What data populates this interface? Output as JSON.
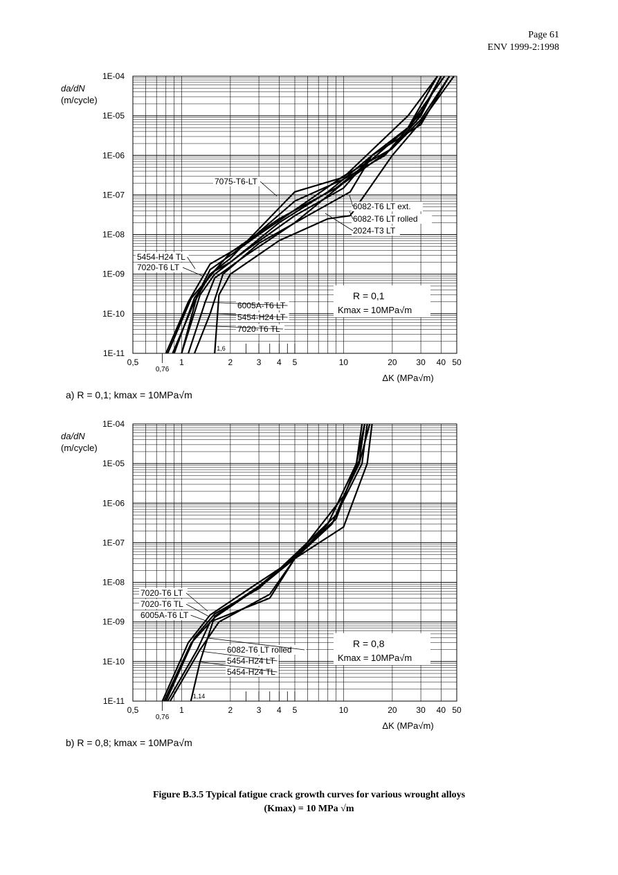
{
  "header": {
    "page": "Page 61",
    "doc": "ENV 1999-2:1998"
  },
  "axis_common": {
    "ylabel_line1": "da/dN",
    "ylabel_line2": "(m/cycle)",
    "xlabel": "ΔK (MPa√m)",
    "y_ticks": [
      "1E-04",
      "1E-05",
      "1E-06",
      "1E-07",
      "1E-08",
      "1E-09",
      "1E-10",
      "1E-11"
    ],
    "x_ticks": [
      {
        "label": "0,5",
        "v": 0.5
      },
      {
        "label": "1",
        "v": 1
      },
      {
        "label": "2",
        "v": 2
      },
      {
        "label": "3",
        "v": 3
      },
      {
        "label": "4",
        "v": 4
      },
      {
        "label": "5",
        "v": 5
      },
      {
        "label": "10",
        "v": 10
      },
      {
        "label": "20",
        "v": 20
      },
      {
        "label": "30",
        "v": 30
      },
      {
        "label": "40",
        "v": 40
      },
      {
        "label": "50",
        "v": 50
      }
    ],
    "x_extra": "0,76"
  },
  "chart_data": [
    {
      "type": "line",
      "subtitle": "a) R = 0,1; kmax = 10MPa√m",
      "xlim": [
        0.5,
        50
      ],
      "ylim": [
        1e-11,
        0.0001
      ],
      "xscale": "log",
      "yscale": "log",
      "box_R": "R = 0,1",
      "box_K": "Kmax = 10MPa√m",
      "threshold_label": "1,6",
      "labels": [
        "7075-T6-LT",
        "6082-T6 LT ext.",
        "6082-T6 LT rolled",
        "2024-T3 LT",
        "5454-H24 TL",
        "7020-T6 LT",
        "6005A-T6 LT",
        "5454-H24 LT",
        "7020-T6 TL"
      ],
      "series": [
        {
          "name": "7075-T6-LT",
          "x": [
            0.88,
            1.2,
            1.5,
            2.0,
            5.0,
            10,
            25,
            38
          ],
          "y": [
            1e-11,
            2e-10,
            1e-09,
            2.5e-09,
            1.2e-07,
            2.8e-07,
            1e-05,
            0.0001
          ]
        },
        {
          "name": "6082-T6 LT ext.",
          "x": [
            1.0,
            1.3,
            1.6,
            2.5,
            5.0,
            10,
            15,
            25,
            42
          ],
          "y": [
            1e-11,
            3e-10,
            1e-09,
            4e-09,
            3e-08,
            1.5e-07,
            1e-06,
            5e-06,
            0.0001
          ]
        },
        {
          "name": "6082-T6 LT rolled",
          "x": [
            1.0,
            1.25,
            1.5,
            2.0,
            3.0,
            6.0,
            10,
            20,
            30,
            40
          ],
          "y": [
            1e-11,
            3e-10,
            1.3e-09,
            3e-09,
            1e-08,
            7e-08,
            3e-07,
            1.5e-06,
            1e-05,
            0.0001
          ]
        },
        {
          "name": "2024-T3 LT",
          "x": [
            0.82,
            1.15,
            1.6,
            2.0,
            4.0,
            8.0,
            10,
            15,
            30,
            45
          ],
          "y": [
            1e-11,
            2.5e-10,
            1.2e-09,
            2e-09,
            2e-08,
            1.2e-07,
            2.5e-07,
            1e-06,
            6e-06,
            0.0001
          ]
        },
        {
          "name": "5454-H24 TL",
          "x": [
            0.8,
            1.1,
            1.5,
            2.5,
            5.0,
            10,
            18,
            30
          ],
          "y": [
            1e-11,
            2e-10,
            1.8e-09,
            6e-09,
            7e-08,
            2.5e-07,
            1e-06,
            1.2e-05
          ]
        },
        {
          "name": "7020-T6 LT",
          "x": [
            0.9,
            1.2,
            1.5,
            2.0,
            4.0,
            9.0,
            15,
            25,
            38
          ],
          "y": [
            1e-11,
            2.5e-10,
            9e-10,
            3.5e-09,
            2.5e-08,
            1.5e-07,
            8e-07,
            5e-06,
            0.0001
          ]
        },
        {
          "name": "6005A-T6 LT",
          "x": [
            1.1,
            1.4,
            1.6,
            2.5,
            5.0,
            10,
            20,
            30,
            45
          ],
          "y": [
            1e-11,
            2e-10,
            8e-10,
            3e-09,
            2e-08,
            2e-07,
            1.5e-06,
            8e-06,
            0.0001
          ]
        },
        {
          "name": "5454-H24 LT",
          "x": [
            1.2,
            1.5,
            1.8,
            3.0,
            6.0,
            11,
            15,
            28,
            40
          ],
          "y": [
            1e-11,
            1e-10,
            1e-09,
            6e-09,
            3e-08,
            1.2e-07,
            1e-06,
            7e-06,
            0.0001
          ]
        },
        {
          "name": "7020-T6 TL",
          "x": [
            1.6,
            1.7,
            2.0,
            4.0,
            8.0,
            11,
            20,
            30,
            48
          ],
          "y": [
            1e-11,
            3e-10,
            1e-09,
            7e-09,
            2.5e-08,
            3e-08,
            1e-06,
            7e-06,
            0.0001
          ]
        }
      ]
    },
    {
      "type": "line",
      "subtitle": "b) R = 0,8; kmax = 10MPa√m",
      "xlim": [
        0.5,
        50
      ],
      "ylim": [
        1e-11,
        0.0001
      ],
      "xscale": "log",
      "yscale": "log",
      "box_R": "R = 0,8",
      "box_K": "Kmax = 10MPa√m",
      "threshold_label": "1,14",
      "labels": [
        "7020-T6 LT",
        "7020-T6 TL",
        "6005A-T6 LT",
        "6082-T6 LT rolled",
        "5454-H24 LT",
        "5454-H24 TL"
      ],
      "series": [
        {
          "name": "7020-T6 LT",
          "x": [
            0.76,
            1.1,
            1.5,
            3.0,
            5.0,
            8.0,
            12,
            13
          ],
          "y": [
            1e-11,
            3e-10,
            1.5e-09,
            1e-08,
            4e-08,
            3e-07,
            1e-05,
            0.0001
          ]
        },
        {
          "name": "7020-T6 TL",
          "x": [
            0.78,
            1.15,
            1.6,
            3.2,
            5.0,
            8.5,
            12.5,
            13.5
          ],
          "y": [
            1e-11,
            3e-10,
            1.3e-09,
            9e-09,
            4e-08,
            3e-07,
            1.2e-05,
            0.0001
          ]
        },
        {
          "name": "6005A-T6 LT",
          "x": [
            0.8,
            1.2,
            1.6,
            3.0,
            5.0,
            9.0,
            13,
            14
          ],
          "y": [
            1e-11,
            4e-10,
            1.6e-09,
            7e-09,
            5e-08,
            5e-07,
            1e-05,
            0.0001
          ]
        },
        {
          "name": "6082-T6 LT rolled",
          "x": [
            0.82,
            1.25,
            1.5,
            3.5,
            5.0,
            10,
            12.5,
            14.5
          ],
          "y": [
            1e-11,
            2e-10,
            1e-09,
            4e-09,
            4e-08,
            1.5e-06,
            1e-05,
            0.0001
          ]
        },
        {
          "name": "5454-H24 LT",
          "x": [
            0.85,
            1.3,
            1.7,
            3.5,
            5.0,
            10,
            14,
            15
          ],
          "y": [
            1e-11,
            2e-10,
            1e-09,
            5e-09,
            4e-08,
            2.5e-07,
            1e-05,
            0.0001
          ]
        },
        {
          "name": "5454-H24 TL",
          "x": [
            1.14,
            1.3,
            1.6,
            3.0,
            5.0,
            9.0,
            12,
            13.5
          ],
          "y": [
            1e-11,
            1e-10,
            1.4e-09,
            8e-09,
            4.5e-08,
            4e-07,
            1e-05,
            0.0001
          ]
        }
      ]
    }
  ],
  "caption": {
    "line1": "Figure B.3.5 Typical fatigue crack growth curves for various wrought alloys",
    "line2": "(Kmax) = 10 MPa √m"
  }
}
